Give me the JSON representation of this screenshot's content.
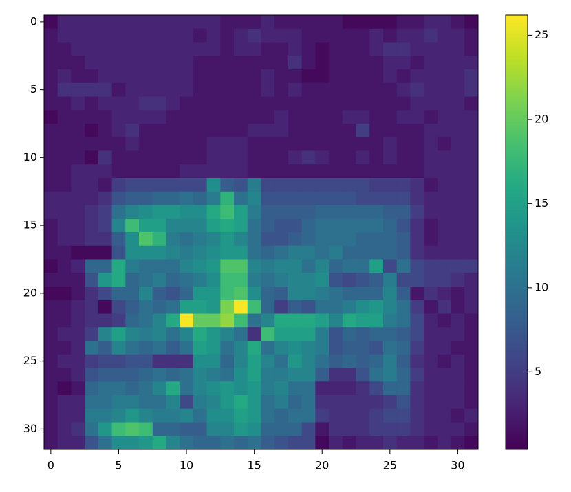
{
  "chart_data": {
    "type": "heatmap",
    "colormap": "viridis",
    "xlim": [
      -0.5,
      31.5
    ],
    "ylim": [
      31.5,
      -0.5
    ],
    "xticks": [
      0,
      5,
      10,
      15,
      20,
      25,
      30
    ],
    "yticks": [
      0,
      5,
      10,
      15,
      20,
      25,
      30
    ],
    "clim": [
      0.4,
      26.2
    ],
    "cticks": [
      5,
      10,
      15,
      20,
      25
    ],
    "z": [
      [
        1,
        3,
        3,
        3,
        3,
        3,
        3,
        3,
        3,
        3,
        3,
        3,
        3,
        2,
        2,
        2,
        3,
        2,
        2,
        2,
        2,
        2,
        1,
        1,
        1,
        1,
        2,
        2,
        3,
        3,
        2,
        1
      ],
      [
        2,
        3,
        3,
        3,
        3,
        3,
        3,
        3,
        3,
        3,
        3,
        2,
        3,
        2,
        3,
        4,
        3,
        3,
        3,
        2,
        2,
        2,
        2,
        2,
        3,
        2,
        3,
        3,
        4,
        3,
        3,
        2
      ],
      [
        2,
        2,
        3,
        3,
        3,
        3,
        3,
        3,
        3,
        3,
        3,
        3,
        3,
        2,
        3,
        3,
        2,
        2,
        3,
        2,
        1,
        2,
        2,
        2,
        3,
        4,
        4,
        3,
        3,
        3,
        3,
        2
      ],
      [
        2,
        2,
        2,
        3,
        3,
        3,
        3,
        3,
        3,
        3,
        3,
        2,
        2,
        2,
        2,
        2,
        2,
        2,
        4,
        2,
        1,
        2,
        2,
        2,
        2,
        3,
        3,
        2,
        3,
        3,
        3,
        3
      ],
      [
        2,
        3,
        2,
        2,
        3,
        3,
        3,
        3,
        3,
        3,
        3,
        2,
        2,
        2,
        2,
        2,
        3,
        2,
        2,
        1,
        1,
        2,
        2,
        2,
        2,
        3,
        2,
        3,
        3,
        3,
        3,
        4
      ],
      [
        2,
        4,
        4,
        4,
        4,
        2,
        3,
        3,
        3,
        3,
        3,
        2,
        2,
        2,
        2,
        2,
        3,
        2,
        3,
        2,
        2,
        2,
        2,
        2,
        2,
        2,
        3,
        4,
        3,
        3,
        3,
        4
      ],
      [
        2,
        2,
        3,
        2,
        3,
        3,
        3,
        4,
        4,
        3,
        2,
        2,
        2,
        2,
        2,
        2,
        2,
        2,
        2,
        2,
        2,
        2,
        2,
        2,
        2,
        2,
        2,
        3,
        3,
        3,
        3,
        2
      ],
      [
        1,
        2,
        2,
        2,
        2,
        3,
        3,
        3,
        3,
        2,
        2,
        2,
        2,
        2,
        2,
        2,
        2,
        3,
        2,
        2,
        2,
        2,
        3,
        3,
        2,
        2,
        3,
        3,
        2,
        3,
        3,
        3
      ],
      [
        2,
        2,
        2,
        1,
        2,
        3,
        4,
        2,
        2,
        2,
        2,
        2,
        2,
        2,
        2,
        3,
        3,
        3,
        2,
        2,
        2,
        2,
        2,
        5,
        2,
        2,
        2,
        2,
        3,
        3,
        3,
        3
      ],
      [
        2,
        2,
        2,
        2,
        2,
        2,
        3,
        2,
        2,
        2,
        2,
        2,
        3,
        3,
        3,
        2,
        2,
        2,
        2,
        2,
        2,
        2,
        2,
        2,
        2,
        3,
        2,
        2,
        3,
        2,
        3,
        3
      ],
      [
        2,
        2,
        2,
        1,
        4,
        2,
        2,
        2,
        2,
        2,
        2,
        2,
        3,
        3,
        3,
        2,
        2,
        2,
        3,
        4,
        3,
        2,
        2,
        3,
        2,
        3,
        2,
        2,
        3,
        3,
        3,
        3
      ],
      [
        2,
        2,
        3,
        3,
        3,
        2,
        2,
        2,
        2,
        2,
        3,
        3,
        3,
        3,
        3,
        2,
        2,
        2,
        2,
        2,
        2,
        2,
        2,
        2,
        2,
        2,
        2,
        2,
        3,
        3,
        3,
        3
      ],
      [
        2,
        2,
        3,
        3,
        2,
        5,
        6,
        6,
        6,
        6,
        6,
        6,
        13,
        8,
        7,
        11,
        6,
        6,
        6,
        6,
        6,
        6,
        6,
        6,
        5,
        5,
        5,
        4,
        2,
        3,
        3,
        3
      ],
      [
        3,
        3,
        3,
        3,
        4,
        7,
        8,
        8,
        9,
        9,
        10,
        9,
        11,
        17,
        10,
        12,
        7,
        7,
        7,
        7,
        7,
        7,
        7,
        6,
        6,
        6,
        6,
        4,
        3,
        3,
        3,
        3
      ],
      [
        3,
        3,
        3,
        4,
        5,
        10,
        12,
        13,
        14,
        14,
        13,
        13,
        16,
        18,
        15,
        11,
        8,
        8,
        8,
        8,
        9,
        9,
        9,
        9,
        9,
        8,
        8,
        5,
        3,
        3,
        3,
        3
      ],
      [
        2,
        3,
        3,
        4,
        5,
        12,
        18,
        15,
        15,
        12,
        12,
        12,
        15,
        16,
        15,
        10,
        8,
        7,
        7,
        9,
        10,
        10,
        10,
        10,
        10,
        9,
        7,
        4,
        2,
        3,
        3,
        3
      ],
      [
        2,
        3,
        3,
        4,
        4,
        8,
        13,
        19,
        17,
        11,
        10,
        11,
        12,
        14,
        12,
        10,
        7,
        7,
        8,
        9,
        10,
        10,
        10,
        9,
        9,
        9,
        8,
        4,
        2,
        3,
        3,
        3
      ],
      [
        2,
        2,
        1,
        1,
        1,
        7,
        13,
        13,
        13,
        12,
        11,
        12,
        13,
        14,
        14,
        10,
        9,
        10,
        11,
        11,
        10,
        11,
        9,
        9,
        9,
        9,
        8,
        4,
        3,
        3,
        3,
        3
      ],
      [
        1,
        2,
        3,
        9,
        9,
        16,
        11,
        10,
        10,
        10,
        12,
        13,
        14,
        19,
        19,
        12,
        11,
        12,
        12,
        10,
        12,
        9,
        10,
        10,
        15,
        6,
        10,
        6,
        5,
        5,
        5,
        5
      ],
      [
        2,
        2,
        2,
        7,
        14,
        16,
        9,
        10,
        11,
        9,
        10,
        11,
        13,
        18,
        18,
        11,
        10,
        11,
        12,
        12,
        13,
        7,
        6,
        7,
        8,
        11,
        6,
        6,
        5,
        5,
        4,
        3
      ],
      [
        1,
        1,
        2,
        4,
        6,
        9,
        9,
        12,
        8,
        7,
        9,
        14,
        14,
        18,
        19,
        13,
        9,
        8,
        12,
        12,
        11,
        10,
        9,
        9,
        9,
        12,
        8,
        2,
        4,
        3,
        2,
        3
      ],
      [
        2,
        2,
        3,
        4,
        1,
        6,
        8,
        10,
        9,
        10,
        15,
        15,
        14,
        21,
        26,
        18,
        9,
        5,
        8,
        7,
        10,
        10,
        11,
        13,
        14,
        12,
        10,
        5,
        2,
        4,
        2,
        3
      ],
      [
        2,
        2,
        3,
        4,
        4,
        5,
        9,
        10,
        12,
        16,
        26,
        20,
        20,
        22,
        18,
        10,
        12,
        16,
        16,
        16,
        15,
        12,
        16,
        15,
        15,
        11,
        10,
        6,
        3,
        2,
        3,
        2
      ],
      [
        2,
        3,
        3,
        5,
        12,
        15,
        12,
        11,
        12,
        10,
        12,
        16,
        14,
        12,
        10,
        4,
        18,
        15,
        15,
        15,
        11,
        7,
        9,
        8,
        9,
        9,
        8,
        6,
        3,
        3,
        3,
        2
      ],
      [
        2,
        2,
        3,
        10,
        8,
        12,
        10,
        9,
        10,
        8,
        10,
        15,
        14,
        10,
        12,
        16,
        10,
        12,
        13,
        12,
        11,
        7,
        8,
        8,
        7,
        10,
        9,
        5,
        3,
        3,
        2,
        2
      ],
      [
        2,
        3,
        3,
        5,
        6,
        6,
        7,
        7,
        4,
        4,
        4,
        13,
        13,
        9,
        12,
        15,
        12,
        10,
        14,
        12,
        10,
        8,
        9,
        8,
        9,
        11,
        8,
        4,
        3,
        2,
        3,
        2
      ],
      [
        2,
        2,
        3,
        7,
        8,
        8,
        8,
        9,
        10,
        9,
        10,
        12,
        11,
        10,
        13,
        15,
        11,
        11,
        12,
        12,
        8,
        4,
        4,
        7,
        10,
        11,
        9,
        5,
        3,
        3,
        3,
        2
      ],
      [
        2,
        1,
        2,
        9,
        10,
        10,
        9,
        10,
        12,
        16,
        10,
        12,
        13,
        14,
        13,
        14,
        11,
        12,
        10,
        10,
        3,
        3,
        3,
        4,
        6,
        9,
        9,
        4,
        3,
        3,
        3,
        2
      ],
      [
        2,
        3,
        3,
        10,
        10,
        11,
        11,
        10,
        10,
        12,
        6,
        11,
        12,
        14,
        16,
        14,
        10,
        11,
        9,
        10,
        4,
        4,
        4,
        4,
        4,
        5,
        7,
        4,
        3,
        3,
        3,
        2
      ],
      [
        2,
        3,
        3,
        11,
        11,
        12,
        14,
        12,
        11,
        11,
        12,
        10,
        13,
        13,
        15,
        14,
        10,
        9,
        10,
        10,
        5,
        4,
        4,
        4,
        5,
        6,
        6,
        4,
        3,
        3,
        2,
        3
      ],
      [
        2,
        3,
        4,
        10,
        14,
        18,
        19,
        18,
        9,
        9,
        8,
        8,
        12,
        12,
        14,
        13,
        9,
        9,
        9,
        6,
        2,
        4,
        4,
        4,
        5,
        5,
        5,
        4,
        3,
        3,
        3,
        2
      ],
      [
        2,
        3,
        3,
        7,
        10,
        13,
        13,
        14,
        16,
        12,
        10,
        9,
        9,
        10,
        9,
        10,
        8,
        7,
        6,
        6,
        1,
        3,
        2,
        3,
        3,
        4,
        3,
        3,
        2,
        3,
        2,
        1
      ]
    ]
  }
}
